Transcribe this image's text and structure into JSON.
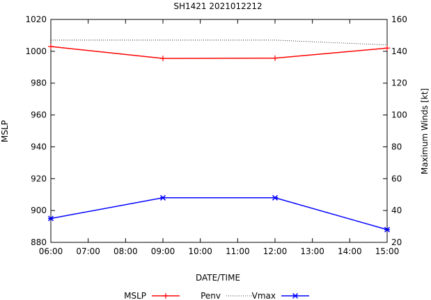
{
  "chart_data": {
    "type": "line",
    "title": "SH1421 2021012212",
    "xlabel": "DATE/TIME",
    "ylabel_left": "MSLP",
    "ylabel_right": "Maximum Winds [kt]",
    "x_ticks": [
      "06:00",
      "07:00",
      "08:00",
      "09:00",
      "10:00",
      "11:00",
      "12:00",
      "13:00",
      "14:00",
      "15:00"
    ],
    "ylim_left": [
      880,
      1020
    ],
    "yticks_left": [
      "880",
      "900",
      "920",
      "940",
      "960",
      "980",
      "1000",
      "1020"
    ],
    "ylim_right": [
      20,
      160
    ],
    "yticks_right": [
      "20",
      "40",
      "60",
      "80",
      "100",
      "120",
      "140",
      "160"
    ],
    "legend": [
      "MSLP",
      "Penv",
      "Vmax"
    ],
    "legend_position": "bottom",
    "series": [
      {
        "name": "MSLP",
        "axis": "left",
        "color": "#ff0000",
        "marker": "plus",
        "x": [
          6,
          9,
          12,
          15
        ],
        "values": [
          1003,
          995.5,
          995.7,
          1002
        ]
      },
      {
        "name": "Penv",
        "axis": "left",
        "color": "#000000",
        "marker": "none",
        "style": "dotted",
        "x": [
          6,
          9,
          12,
          15
        ],
        "values": [
          1007,
          1007,
          1007,
          1004
        ]
      },
      {
        "name": "Vmax",
        "axis": "right",
        "color": "#0000ff",
        "marker": "cross",
        "x": [
          6,
          9,
          12,
          15
        ],
        "values": [
          35,
          48,
          48,
          28
        ]
      }
    ]
  }
}
